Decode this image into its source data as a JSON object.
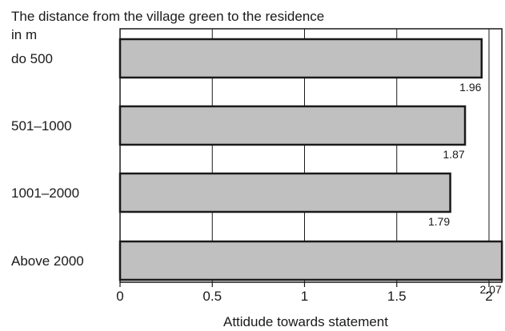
{
  "chart_data": {
    "type": "bar",
    "orientation": "horizontal",
    "title": "The distance from the village green to the residence",
    "ylabel": "in m",
    "xlabel": "Attidude towards statement",
    "categories": [
      "do 500",
      "501–1000",
      "1001–2000",
      "Above 2000"
    ],
    "values": [
      1.96,
      1.87,
      1.79,
      2.07
    ],
    "value_labels": [
      "1.96",
      "1.87",
      "1.79",
      "2.07"
    ],
    "xlim": [
      0,
      2.07
    ],
    "xticks": [
      0,
      0.5,
      1,
      1.5,
      2
    ],
    "xtick_labels": [
      "0",
      "0.5",
      "1",
      "1.5",
      "2"
    ],
    "grid": "vertical",
    "bar_color": "#c0c0c0",
    "bar_edge_color": "#1a1a1a"
  }
}
